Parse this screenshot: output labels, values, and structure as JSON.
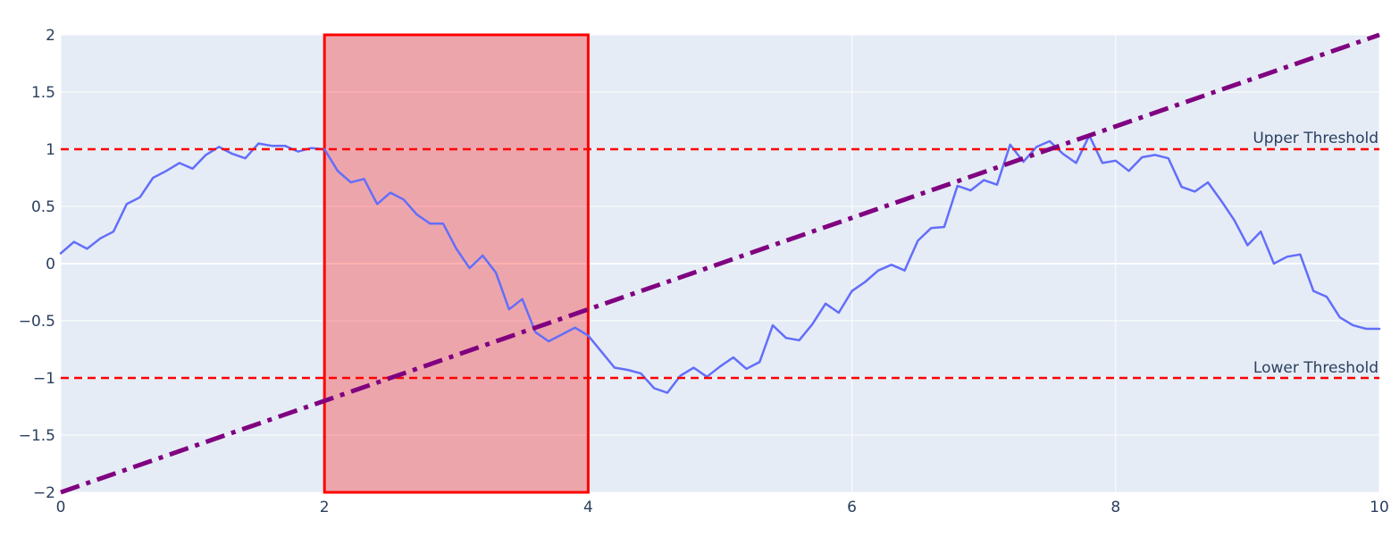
{
  "chart_data": {
    "type": "line",
    "xlim": [
      0,
      10
    ],
    "ylim": [
      -2,
      2
    ],
    "x_ticks": [
      0,
      2,
      4,
      6,
      8,
      10
    ],
    "x_tick_labels": [
      "0",
      "2",
      "4",
      "6",
      "8",
      "10"
    ],
    "y_ticks": [
      2,
      1.5,
      1,
      0.5,
      0,
      -0.5,
      -1,
      -1.5,
      -2
    ],
    "y_tick_labels": [
      "2",
      "1.5",
      "1",
      "0.5",
      "0",
      "−0.5",
      "−1",
      "−1.5",
      "−2"
    ],
    "grid": true,
    "colors": {
      "plot_bg": "#e5ecf6",
      "grid": "#ffffff",
      "series": "#636efa",
      "threshold": "#ff0000",
      "rect_fill": "#ff0000",
      "rect_line": "#ff0000",
      "trend": "#800080"
    },
    "series": [
      {
        "x": [
          0,
          0.1,
          0.2,
          0.3,
          0.4,
          0.5,
          0.6,
          0.7,
          0.8,
          0.9,
          1.0,
          1.1,
          1.2,
          1.3,
          1.4,
          1.5,
          1.6,
          1.7,
          1.8,
          1.9,
          2.0,
          2.1,
          2.2,
          2.3,
          2.4,
          2.5,
          2.6,
          2.7,
          2.8,
          2.9,
          3.0,
          3.1,
          3.2,
          3.3,
          3.4,
          3.5,
          3.6,
          3.7,
          3.8,
          3.9,
          4.0,
          4.1,
          4.2,
          4.3,
          4.4,
          4.5,
          4.6,
          4.7,
          4.8,
          4.9,
          5.0,
          5.1,
          5.2,
          5.3,
          5.4,
          5.5,
          5.6,
          5.7,
          5.8,
          5.9,
          6.0,
          6.1,
          6.2,
          6.3,
          6.4,
          6.5,
          6.6,
          6.7,
          6.8,
          6.9,
          7.0,
          7.1,
          7.2,
          7.3,
          7.4,
          7.5,
          7.6,
          7.7,
          7.8,
          7.9,
          8.0,
          8.1,
          8.2,
          8.3,
          8.4,
          8.5,
          8.6,
          8.7,
          8.8,
          8.9,
          9.0,
          9.1,
          9.2,
          9.3,
          9.4,
          9.5,
          9.6,
          9.7,
          9.8,
          9.9,
          10.0
        ],
        "y": [
          0.09,
          0.19,
          0.13,
          0.22,
          0.28,
          0.52,
          0.58,
          0.75,
          0.81,
          0.88,
          0.83,
          0.95,
          1.02,
          0.96,
          0.92,
          1.05,
          1.03,
          1.03,
          0.98,
          1.01,
          1.0,
          0.81,
          0.71,
          0.74,
          0.52,
          0.62,
          0.56,
          0.43,
          0.35,
          0.35,
          0.13,
          -0.04,
          0.07,
          -0.08,
          -0.4,
          -0.31,
          -0.6,
          -0.68,
          -0.62,
          -0.56,
          -0.63,
          -0.77,
          -0.91,
          -0.93,
          -0.96,
          -1.09,
          -1.13,
          -0.98,
          -0.91,
          -0.99,
          -0.9,
          -0.82,
          -0.92,
          -0.86,
          -0.54,
          -0.65,
          -0.67,
          -0.53,
          -0.35,
          -0.43,
          -0.24,
          -0.16,
          -0.06,
          -0.01,
          -0.06,
          0.2,
          0.31,
          0.32,
          0.68,
          0.64,
          0.73,
          0.69,
          1.04,
          0.89,
          1.02,
          1.07,
          0.96,
          0.88,
          1.12,
          0.88,
          0.9,
          0.81,
          0.93,
          0.95,
          0.92,
          0.67,
          0.63,
          0.71,
          0.55,
          0.38,
          0.16,
          0.28,
          0.0,
          0.06,
          0.08,
          -0.24,
          -0.29,
          -0.47,
          -0.54,
          -0.57,
          -0.57
        ]
      }
    ],
    "shapes": {
      "rect": {
        "x0": 2,
        "x1": 4,
        "y0": -2,
        "y1": 2
      },
      "trend_line": {
        "x0": 0,
        "y0": -2,
        "x1": 10,
        "y1": 2
      },
      "thresholds": [
        {
          "y": 1,
          "label": "Upper Threshold"
        },
        {
          "y": -1,
          "label": "Lower Threshold"
        }
      ]
    }
  }
}
